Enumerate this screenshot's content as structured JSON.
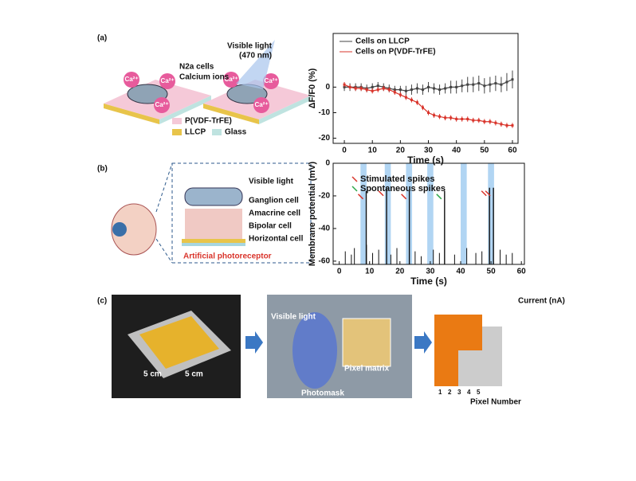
{
  "panels": {
    "a": "(a)",
    "b": "(b)",
    "c": "(c)"
  },
  "diagram_a": {
    "cells": "N2a cells",
    "ions": "Calcium ions",
    "ion": "Ca²⁺",
    "light": "Visible light",
    "wavelength": "(470 nm)",
    "legend": [
      "P(VDF-TrFE)",
      "LLCP",
      "Glass"
    ]
  },
  "diagram_b": {
    "light": "Visible light",
    "layers": [
      "Ganglion cell",
      "Amacrine cell",
      "Bipolar cell",
      "Horizontal cell"
    ],
    "receptor": "Artificial photoreceptor"
  },
  "diagram_c": {
    "size": "5 cm",
    "light": "Visible light",
    "mask": "Photomask",
    "matrix": "Pixel matrix",
    "z_label": "Current (nA)",
    "x_label": "Pixel Number",
    "ticks": [
      "1",
      "2",
      "3",
      "4",
      "5"
    ]
  },
  "chart_data": [
    {
      "type": "line",
      "x_label": "Time (s)",
      "y_label": "ΔF/F0 (%)",
      "xlim": [
        -4,
        62
      ],
      "ylim": [
        -22,
        21
      ],
      "xticks": [
        0,
        10,
        20,
        30,
        40,
        50,
        60
      ],
      "yticks": [
        0,
        -10,
        -20
      ],
      "x": [
        0,
        2,
        4,
        6,
        8,
        10,
        12,
        14,
        16,
        18,
        20,
        22,
        24,
        26,
        28,
        30,
        32,
        34,
        36,
        38,
        40,
        42,
        44,
        46,
        48,
        50,
        52,
        54,
        56,
        58,
        60
      ],
      "series": [
        {
          "name": "Cells on LLCP",
          "color": "#444444",
          "values": [
            0,
            0,
            0,
            0,
            -0.5,
            0,
            0.5,
            0,
            -0.5,
            -1,
            -1,
            -1.5,
            -1,
            -0.5,
            -1,
            0,
            -0.5,
            -1,
            -0.5,
            0,
            0,
            0.5,
            1,
            1,
            1.5,
            0.5,
            1,
            1.5,
            1,
            2,
            3
          ],
          "errors": [
            1.5,
            1.5,
            1.5,
            1.5,
            1.5,
            1.5,
            1.5,
            1.5,
            1.5,
            1.5,
            1.5,
            2,
            2,
            2,
            2,
            2,
            2,
            2,
            2,
            2.5,
            2.5,
            2.5,
            3,
            3,
            3,
            3,
            3,
            3,
            3,
            3.5,
            3.5
          ]
        },
        {
          "name": "Cells on P(VDF-TrFE)",
          "color": "#d9342b",
          "values": [
            1,
            0,
            -0.5,
            -0.5,
            -1,
            -1.5,
            -1,
            -0.5,
            -1,
            -2,
            -3,
            -4,
            -5,
            -6,
            -8,
            -10,
            -11,
            -11.5,
            -12,
            -12,
            -12.5,
            -12.5,
            -12.5,
            -13,
            -13,
            -13.5,
            -13.5,
            -14,
            -14.5,
            -15,
            -15
          ],
          "errors": [
            1,
            1,
            1,
            1,
            1,
            1,
            1,
            1,
            1,
            1,
            1,
            1,
            1,
            1,
            1,
            1,
            1,
            1,
            1,
            1,
            1,
            1,
            1,
            1,
            1,
            1,
            1,
            1,
            1,
            1,
            1
          ]
        }
      ]
    },
    {
      "type": "spike",
      "x_label": "Time (s)",
      "y_label": "Membrane potential (mV)",
      "xlim": [
        -2,
        61
      ],
      "ylim": [
        -62,
        0
      ],
      "xticks": [
        0,
        10,
        20,
        30,
        40,
        50,
        60
      ],
      "yticks": [
        0,
        -20,
        -40,
        -60
      ],
      "stimuli": {
        "start": [
          7,
          15,
          22,
          29,
          40,
          49
        ],
        "duration": 2,
        "color": "#9ecbf0"
      },
      "noise": {
        "x": [
          2,
          4,
          5,
          9,
          11,
          13,
          17,
          19,
          25,
          27,
          31,
          33,
          38,
          42,
          45,
          47,
          53,
          55,
          57
        ],
        "values": [
          -54,
          -56,
          -52,
          -50,
          -55,
          -53,
          -56,
          -52,
          -54,
          -57,
          -53,
          -55,
          -56,
          -52,
          -55,
          -54,
          -53,
          -56,
          -55
        ]
      },
      "series": [
        {
          "name": "Stimulated spikes",
          "color": "#d9342b",
          "x": [
            8.9,
            15.6,
            23.1,
            49.5,
            50.8
          ],
          "values": [
            -17,
            -15,
            -17,
            -15,
            -15
          ]
        },
        {
          "name": "Spontaneous spikes",
          "color": "#2ea84a",
          "x": [
            34.7
          ],
          "values": [
            -17
          ]
        }
      ]
    }
  ]
}
